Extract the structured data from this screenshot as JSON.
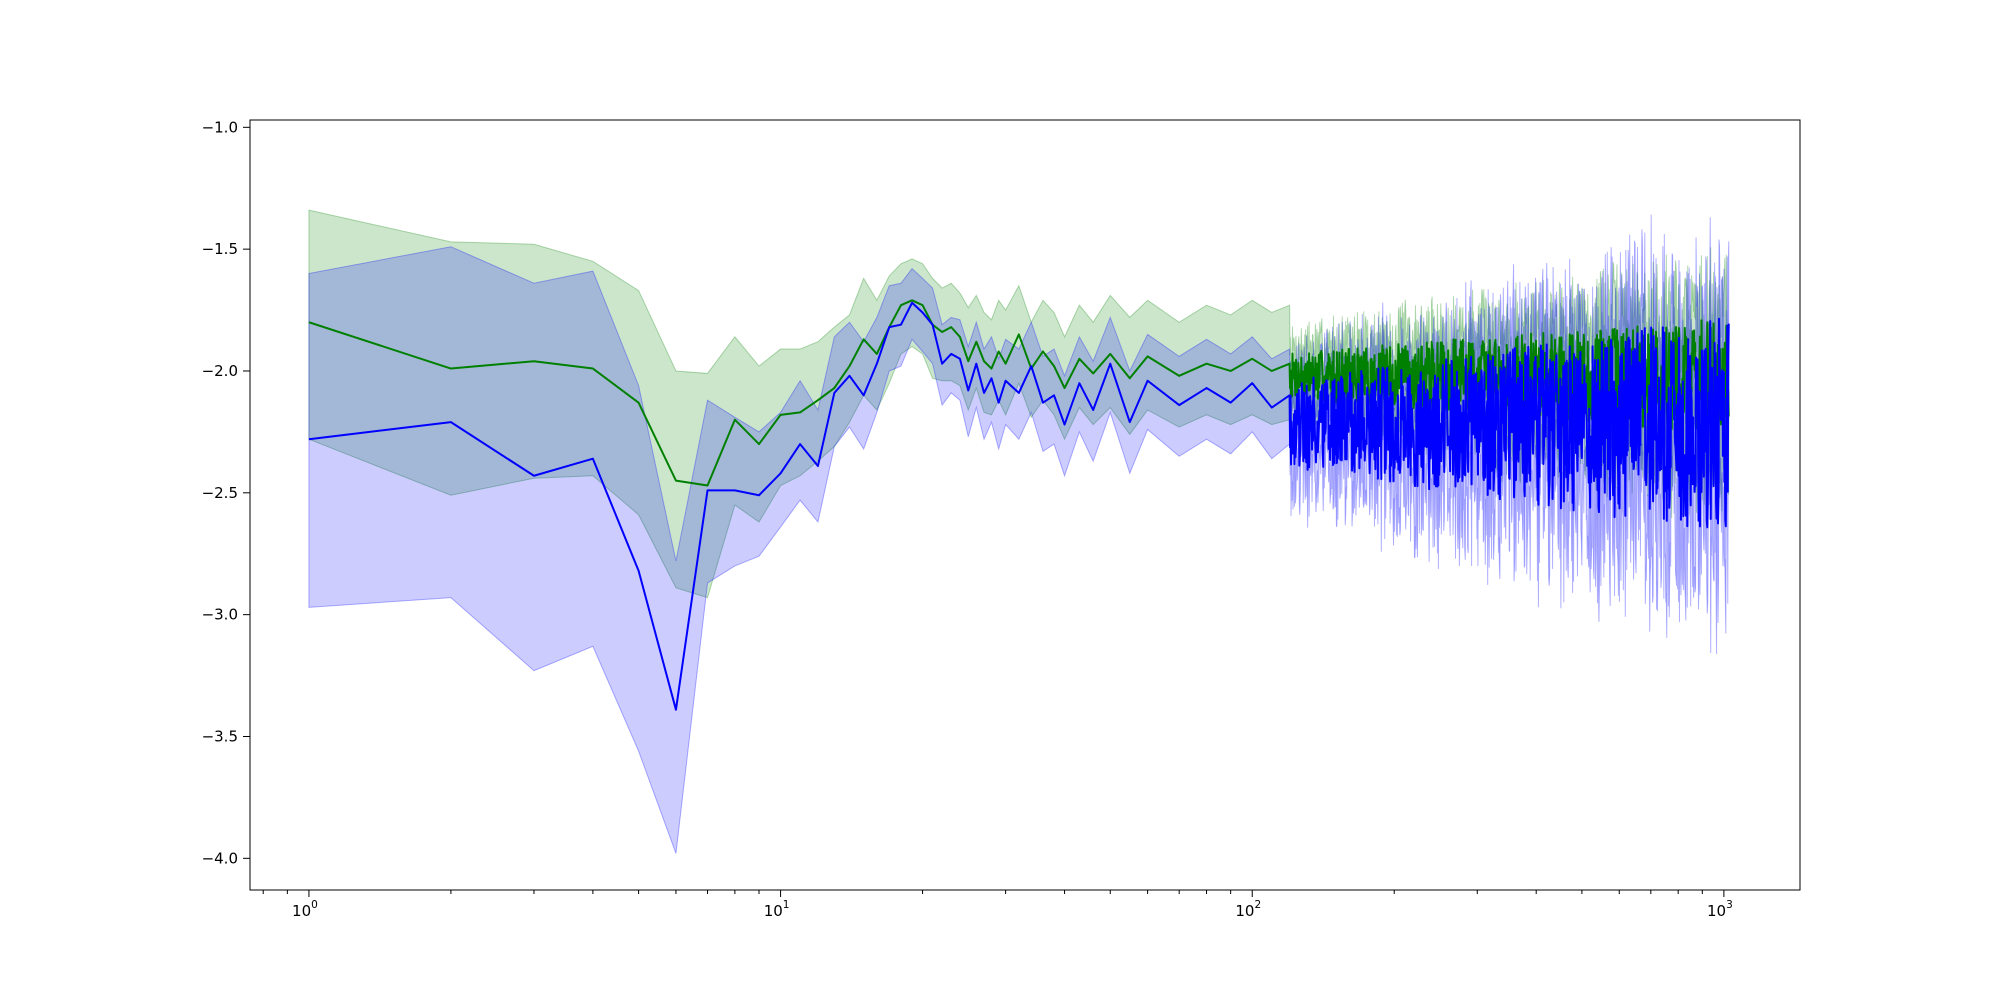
{
  "chart_data": {
    "type": "line",
    "title": "",
    "xlabel": "",
    "ylabel": "",
    "xscale": "log",
    "xlim": [
      0.75,
      1450
    ],
    "ylim": [
      -4.13,
      -0.97
    ],
    "grid": false,
    "legend": "none",
    "x_ticks": [
      {
        "value": 1,
        "base": "10",
        "exp": "0"
      },
      {
        "value": 10,
        "base": "10",
        "exp": "1"
      },
      {
        "value": 100,
        "base": "10",
        "exp": "2"
      },
      {
        "value": 1000,
        "base": "10",
        "exp": "3"
      }
    ],
    "y_ticks": [
      {
        "value": -1.0,
        "label": "−1.0"
      },
      {
        "value": -1.5,
        "label": "−1.5"
      },
      {
        "value": -2.0,
        "label": "−2.0"
      },
      {
        "value": -2.5,
        "label": "−2.5"
      },
      {
        "value": -3.0,
        "label": "−3.0"
      },
      {
        "value": -3.5,
        "label": "−3.5"
      },
      {
        "value": -4.0,
        "label": "−4.0"
      }
    ],
    "series": [
      {
        "color": "#008000",
        "band_color": "#008000",
        "band_opacity": 0.2,
        "x": [
          1,
          2,
          3,
          4,
          5,
          6,
          7,
          8,
          9,
          10,
          11,
          12,
          13,
          14,
          15,
          16,
          17,
          18,
          19,
          20,
          21,
          22,
          23,
          24,
          25,
          26,
          27,
          28,
          29,
          30,
          32,
          34,
          36,
          38,
          40,
          43,
          46,
          50,
          55,
          60,
          70,
          80,
          90,
          100,
          110,
          120
        ],
        "y": [
          -1.8,
          -1.99,
          -1.96,
          -1.99,
          -2.13,
          -2.45,
          -2.47,
          -2.2,
          -2.3,
          -2.18,
          -2.17,
          -2.12,
          -2.07,
          -1.98,
          -1.87,
          -1.93,
          -1.82,
          -1.73,
          -1.71,
          -1.73,
          -1.81,
          -1.84,
          -1.82,
          -1.86,
          -1.96,
          -1.88,
          -1.96,
          -1.99,
          -1.92,
          -1.97,
          -1.85,
          -1.99,
          -1.92,
          -1.98,
          -2.07,
          -1.95,
          -2.01,
          -1.93,
          -2.03,
          -1.94,
          -2.02,
          -1.97,
          -2.0,
          -1.95,
          -2.0,
          -1.97
        ],
        "upper": [
          -1.34,
          -1.47,
          -1.48,
          -1.55,
          -1.67,
          -2.0,
          -2.01,
          -1.86,
          -1.98,
          -1.91,
          -1.91,
          -1.88,
          -1.82,
          -1.77,
          -1.62,
          -1.71,
          -1.61,
          -1.56,
          -1.54,
          -1.56,
          -1.62,
          -1.66,
          -1.64,
          -1.68,
          -1.74,
          -1.69,
          -1.76,
          -1.79,
          -1.71,
          -1.75,
          -1.65,
          -1.8,
          -1.71,
          -1.76,
          -1.86,
          -1.73,
          -1.8,
          -1.69,
          -1.78,
          -1.71,
          -1.8,
          -1.73,
          -1.77,
          -1.71,
          -1.76,
          -1.73
        ],
        "lower": [
          -2.28,
          -2.51,
          -2.44,
          -2.43,
          -2.59,
          -2.89,
          -2.93,
          -2.55,
          -2.62,
          -2.47,
          -2.43,
          -2.37,
          -2.31,
          -2.21,
          -2.1,
          -2.16,
          -2.05,
          -1.93,
          -1.9,
          -1.93,
          -2.03,
          -2.04,
          -2.04,
          -2.06,
          -2.16,
          -2.07,
          -2.17,
          -2.18,
          -2.12,
          -2.18,
          -2.05,
          -2.19,
          -2.12,
          -2.18,
          -2.28,
          -2.15,
          -2.22,
          -2.15,
          -2.26,
          -2.16,
          -2.23,
          -2.18,
          -2.22,
          -2.18,
          -2.22,
          -2.2
        ]
      },
      {
        "color": "#0000ff",
        "band_color": "#0000ff",
        "band_opacity": 0.2,
        "x": [
          1,
          2,
          3,
          4,
          5,
          6,
          7,
          8,
          9,
          10,
          11,
          12,
          13,
          14,
          15,
          16,
          17,
          18,
          19,
          20,
          21,
          22,
          23,
          24,
          25,
          26,
          27,
          28,
          29,
          30,
          32,
          34,
          36,
          38,
          40,
          43,
          46,
          50,
          55,
          60,
          70,
          80,
          90,
          100,
          110,
          120
        ],
        "y": [
          -2.28,
          -2.21,
          -2.43,
          -2.36,
          -2.82,
          -3.39,
          -2.49,
          -2.49,
          -2.51,
          -2.42,
          -2.3,
          -2.39,
          -2.09,
          -2.02,
          -2.1,
          -1.97,
          -1.82,
          -1.81,
          -1.72,
          -1.76,
          -1.81,
          -1.97,
          -1.93,
          -1.95,
          -2.08,
          -1.97,
          -2.09,
          -2.03,
          -2.13,
          -2.04,
          -2.09,
          -1.98,
          -2.13,
          -2.1,
          -2.22,
          -2.05,
          -2.16,
          -1.97,
          -2.21,
          -2.04,
          -2.14,
          -2.07,
          -2.13,
          -2.05,
          -2.15,
          -2.1
        ],
        "upper": [
          -1.6,
          -1.49,
          -1.64,
          -1.59,
          -2.06,
          -2.78,
          -2.12,
          -2.19,
          -2.25,
          -2.17,
          -2.04,
          -2.16,
          -1.86,
          -1.8,
          -1.88,
          -1.78,
          -1.65,
          -1.64,
          -1.58,
          -1.62,
          -1.66,
          -1.81,
          -1.78,
          -1.79,
          -1.9,
          -1.8,
          -1.91,
          -1.86,
          -1.95,
          -1.87,
          -1.91,
          -1.8,
          -1.94,
          -1.91,
          -2.02,
          -1.86,
          -1.96,
          -1.78,
          -2.0,
          -1.85,
          -1.94,
          -1.87,
          -1.93,
          -1.86,
          -1.95,
          -1.91
        ],
        "lower": [
          -2.97,
          -2.93,
          -3.23,
          -3.13,
          -3.56,
          -3.98,
          -2.87,
          -2.8,
          -2.76,
          -2.64,
          -2.53,
          -2.62,
          -2.31,
          -2.23,
          -2.32,
          -2.17,
          -2.0,
          -1.98,
          -1.87,
          -1.92,
          -1.97,
          -2.14,
          -2.09,
          -2.12,
          -2.27,
          -2.15,
          -2.28,
          -2.21,
          -2.32,
          -2.22,
          -2.28,
          -2.17,
          -2.33,
          -2.3,
          -2.43,
          -2.25,
          -2.37,
          -2.17,
          -2.42,
          -2.24,
          -2.35,
          -2.28,
          -2.34,
          -2.25,
          -2.36,
          -2.3
        ]
      }
    ],
    "noisy_tail": {
      "description_free": true,
      "x_start": 120,
      "x_end": 1024,
      "points": 900,
      "green": {
        "center": -2.02,
        "amplitude": 0.16,
        "band": 0.22,
        "seed": 7
      },
      "blue": {
        "center": -2.22,
        "amplitude": 0.3,
        "band": 0.32,
        "seed": 19
      }
    }
  }
}
